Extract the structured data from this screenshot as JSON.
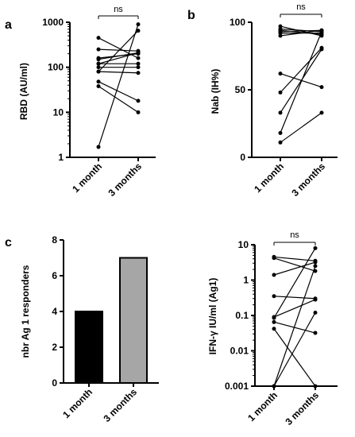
{
  "panels": {
    "a": {
      "letter": "a",
      "ylabel": "RBD (AU/ml)",
      "ns": "ns"
    },
    "b": {
      "letter": "b",
      "ylabel": "Nab (IH%)",
      "ns": "ns"
    },
    "c": {
      "letter": "c",
      "ylabel": "nbr Ag 1 responders"
    },
    "d": {
      "ylabel": "IFN-γ IU/ml (Ag1)",
      "ns": "ns"
    }
  },
  "colors": {
    "bar_1": "#000000",
    "bar_2": "#a6a6a6",
    "axis": "#000000"
  },
  "chart_data": [
    {
      "panel": "a",
      "type": "scatter",
      "scale": "log",
      "categories": [
        "1 month",
        "3 months"
      ],
      "ylabel": "RBD (AU/ml)",
      "ylim": [
        1,
        1000
      ],
      "yticks": [
        1,
        10,
        100,
        1000
      ],
      "ytick_labels": [
        "1",
        "10",
        "100",
        "1000"
      ],
      "pairs": [
        [
          450,
          160
        ],
        [
          250,
          230
        ],
        [
          160,
          200
        ],
        [
          120,
          120
        ],
        [
          100,
          100
        ],
        [
          80,
          75
        ],
        [
          48,
          18
        ],
        [
          38,
          10
        ],
        [
          1.7,
          900
        ],
        [
          80,
          650
        ],
        [
          150,
          210
        ],
        [
          120,
          210
        ]
      ],
      "annotation": "ns"
    },
    {
      "panel": "b",
      "type": "scatter",
      "categories": [
        "1 month",
        "3 months"
      ],
      "ylabel": "Nab (IH%)",
      "ylim": [
        0,
        100
      ],
      "yticks": [
        0,
        50,
        100
      ],
      "ytick_labels": [
        "0",
        "50",
        "100"
      ],
      "pairs": [
        [
          97,
          90
        ],
        [
          95,
          93
        ],
        [
          94,
          91
        ],
        [
          93,
          94
        ],
        [
          92,
          92
        ],
        [
          90,
          94
        ],
        [
          62,
          52
        ],
        [
          48,
          81
        ],
        [
          33,
          80
        ],
        [
          18,
          93
        ],
        [
          11,
          33
        ]
      ],
      "annotation": "ns"
    },
    {
      "panel": "c",
      "type": "bar",
      "categories": [
        "1 month",
        "3 months"
      ],
      "values": [
        4,
        7
      ],
      "ylabel": "nbr Ag 1 responders",
      "ylim": [
        0,
        8
      ],
      "yticks": [
        0,
        2,
        4,
        6,
        8
      ],
      "ytick_labels": [
        "0",
        "2",
        "4",
        "6",
        "8"
      ]
    },
    {
      "panel": "d",
      "type": "scatter",
      "scale": "log",
      "categories": [
        "1 month",
        "3 months"
      ],
      "ylabel": "IFN-γ IU/ml (Ag1)",
      "ylim": [
        0.001,
        10
      ],
      "yticks": [
        0.001,
        0.01,
        0.1,
        1,
        10
      ],
      "ytick_labels": [
        "0.001",
        "0.01",
        "0.1",
        "1",
        "10"
      ],
      "pairs": [
        [
          4.5,
          3.5
        ],
        [
          4.2,
          1.8
        ],
        [
          1.4,
          3.2
        ],
        [
          0.35,
          0.3
        ],
        [
          0.09,
          0.28
        ],
        [
          0.085,
          8.0
        ],
        [
          0.065,
          0.032
        ],
        [
          0.042,
          0.001
        ],
        [
          0.001,
          2.5
        ],
        [
          0.001,
          0.12
        ]
      ],
      "annotation": "ns"
    }
  ]
}
